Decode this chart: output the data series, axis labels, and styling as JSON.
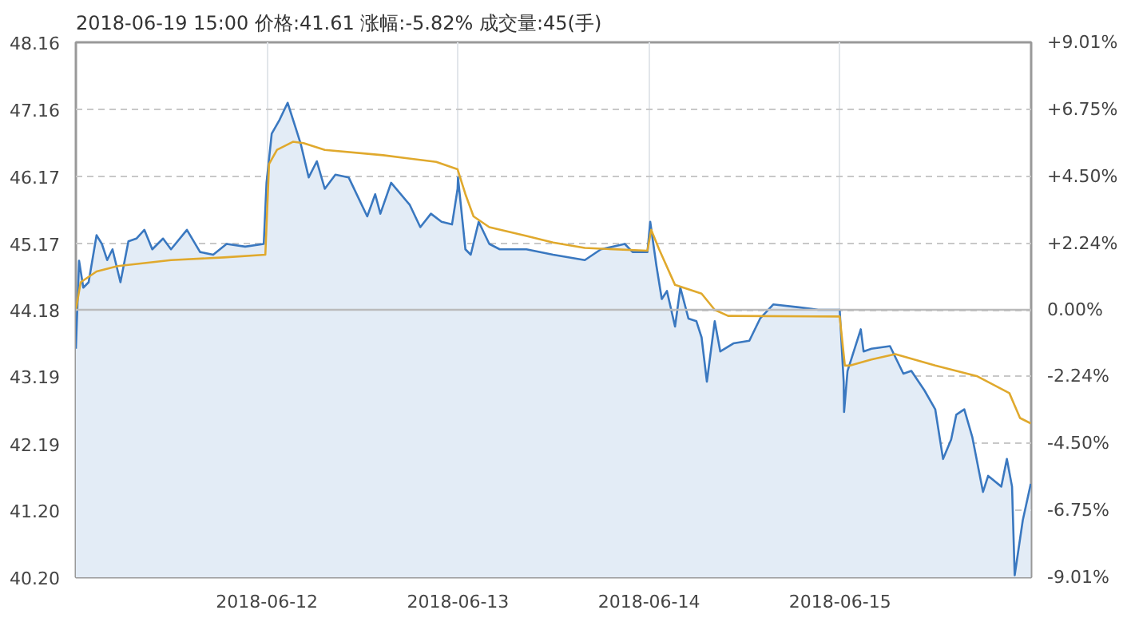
{
  "chart_data": {
    "type": "area",
    "title": "2018-06-19 15:00  价格:41.61  涨幅:-5.82%  成交量:45(手)",
    "xlim": [
      "2018-06-11",
      "2018-06-16"
    ],
    "xticks": [
      "2018-06-12",
      "2018-06-13",
      "2018-06-14",
      "2018-06-15"
    ],
    "ylim": [
      40.2,
      48.16
    ],
    "yticks": [
      {
        "value": 40.2,
        "label": "40.20"
      },
      {
        "value": 41.2,
        "label": "41.20"
      },
      {
        "value": 42.19,
        "label": "42.19"
      },
      {
        "value": 43.19,
        "label": "43.19"
      },
      {
        "value": 44.18,
        "label": "44.18"
      },
      {
        "value": 45.17,
        "label": "45.17"
      },
      {
        "value": 46.17,
        "label": "46.17"
      },
      {
        "value": 47.16,
        "label": "47.16"
      },
      {
        "value": 48.16,
        "label": "48.16"
      }
    ],
    "y2lim": [
      -9.01,
      9.01
    ],
    "y2ticks": [
      {
        "value": -9.01,
        "label": "-9.01%"
      },
      {
        "value": -6.75,
        "label": "-6.75%"
      },
      {
        "value": -4.5,
        "label": "-4.50%"
      },
      {
        "value": -2.24,
        "label": "-2.24%"
      },
      {
        "value": 0,
        "label": "0.00%"
      },
      {
        "value": 2.24,
        "label": "+2.24%"
      },
      {
        "value": 4.5,
        "label": "+4.50%"
      },
      {
        "value": 6.75,
        "label": "+6.75%"
      },
      {
        "value": 9.01,
        "label": "+9.01%"
      }
    ],
    "grid": true,
    "ref_lines": [
      {
        "axis": "y",
        "value": 44.18,
        "color": "#bbbbbb",
        "line_style": "solid"
      }
    ],
    "series": [
      {
        "color": "#3a78c0",
        "x": [
          "2018-06-11T00:00",
          "2018-06-11T00:24",
          "2018-06-11T00:56",
          "2018-06-11T01:36",
          "2018-06-11T02:36",
          "2018-06-11T03:16",
          "2018-06-11T03:56",
          "2018-06-11T04:36",
          "2018-06-11T05:36",
          "2018-06-11T06:36",
          "2018-06-11T07:36",
          "2018-06-11T08:36",
          "2018-06-11T09:36",
          "2018-06-11T10:57",
          "2018-06-11T11:57",
          "2018-06-11T13:57",
          "2018-06-11T15:36",
          "2018-06-11T17:15",
          "2018-06-11T18:56",
          "2018-06-11T21:16",
          "2018-06-11T23:36",
          "2018-06-11T23:57",
          "2018-06-12T00:36",
          "2018-06-12T01:36",
          "2018-06-12T02:36",
          "2018-06-12T03:36",
          "2018-06-12T04:16",
          "2018-06-12T05:15",
          "2018-06-12T06:16",
          "2018-06-12T07:16",
          "2018-06-12T08:36",
          "2018-06-12T10:16",
          "2018-06-12T12:36",
          "2018-06-12T13:36",
          "2018-06-12T14:15",
          "2018-06-12T15:36",
          "2018-06-12T17:57",
          "2018-06-12T19:16",
          "2018-06-12T20:36",
          "2018-06-12T21:56",
          "2018-06-12T23:15",
          "2018-06-12T23:57",
          "2018-06-13T00:00",
          "2018-06-13T00:56",
          "2018-06-13T01:36",
          "2018-06-13T02:36",
          "2018-06-13T03:56",
          "2018-06-13T05:15",
          "2018-06-13T08:36",
          "2018-06-13T11:57",
          "2018-06-13T15:56",
          "2018-06-13T17:57",
          "2018-06-13T20:57",
          "2018-06-13T21:56",
          "2018-06-13T23:48",
          "2018-06-14T00:09",
          "2018-06-14T00:56",
          "2018-06-14T01:36",
          "2018-06-14T02:15",
          "2018-06-14T03:16",
          "2018-06-14T03:56",
          "2018-06-14T04:57",
          "2018-06-14T05:57",
          "2018-06-14T06:36",
          "2018-06-14T07:16",
          "2018-06-14T08:15",
          "2018-06-14T08:57",
          "2018-06-14T10:36",
          "2018-06-14T12:36",
          "2018-06-14T13:57",
          "2018-06-14T15:36",
          "2018-06-14T18:36",
          "2018-06-14T21:16",
          "2018-06-14T23:57",
          "2018-06-15T00:27",
          "2018-06-15T00:30",
          "2018-06-15T00:56",
          "2018-06-15T02:36",
          "2018-06-15T02:57",
          "2018-06-15T03:56",
          "2018-06-15T06:16",
          "2018-06-15T07:57",
          "2018-06-15T08:57",
          "2018-06-15T10:36",
          "2018-06-15T11:57",
          "2018-06-15T12:56",
          "2018-06-15T13:57",
          "2018-06-15T14:36",
          "2018-06-15T15:36",
          "2018-06-15T16:36",
          "2018-06-15T17:57",
          "2018-06-15T18:36",
          "2018-06-15T20:15",
          "2018-06-15T20:57",
          "2018-06-15T21:36",
          "2018-06-15T21:56",
          "2018-06-15T22:57",
          "2018-06-15T23:57"
        ],
        "values": [
          43.6,
          44.91,
          44.51,
          44.59,
          45.29,
          45.16,
          44.92,
          45.08,
          44.59,
          45.2,
          45.24,
          45.37,
          45.08,
          45.24,
          45.08,
          45.37,
          45.04,
          45.0,
          45.16,
          45.12,
          45.16,
          46.07,
          46.8,
          47.01,
          47.26,
          46.89,
          46.64,
          46.15,
          46.39,
          45.98,
          46.19,
          46.15,
          45.57,
          45.9,
          45.61,
          46.07,
          45.74,
          45.41,
          45.61,
          45.49,
          45.45,
          45.98,
          46.15,
          45.08,
          45.0,
          45.49,
          45.16,
          45.08,
          45.08,
          45.0,
          44.92,
          45.08,
          45.16,
          45.04,
          45.04,
          45.49,
          44.83,
          44.34,
          44.46,
          43.93,
          44.51,
          44.05,
          44.01,
          43.77,
          43.11,
          44.01,
          43.56,
          43.68,
          43.72,
          44.05,
          44.26,
          44.22,
          44.18,
          44.18,
          43.11,
          42.66,
          43.27,
          43.89,
          43.56,
          43.6,
          43.64,
          43.23,
          43.27,
          42.98,
          42.7,
          41.96,
          42.25,
          42.62,
          42.7,
          42.29,
          41.47,
          41.71,
          41.55,
          41.96,
          41.55,
          40.23,
          41.05,
          41.59
        ]
      },
      {
        "type": "line",
        "color": "#e0a92d",
        "x": [
          "2018-06-11T00:00",
          "2018-06-11T00:36",
          "2018-06-11T02:36",
          "2018-06-11T05:15",
          "2018-06-11T11:57",
          "2018-06-11T18:36",
          "2018-06-11T23:48",
          "2018-06-12T00:16",
          "2018-06-12T01:16",
          "2018-06-12T03:16",
          "2018-06-12T04:36",
          "2018-06-12T07:16",
          "2018-06-12T14:36",
          "2018-06-12T21:16",
          "2018-06-12T23:57",
          "2018-06-13T00:56",
          "2018-06-13T01:57",
          "2018-06-13T03:56",
          "2018-06-13T08:36",
          "2018-06-13T11:57",
          "2018-06-13T15:56",
          "2018-06-13T23:48",
          "2018-06-14T00:16",
          "2018-06-14T01:16",
          "2018-06-14T03:16",
          "2018-06-14T06:36",
          "2018-06-14T08:15",
          "2018-06-14T09:56",
          "2018-06-14T23:57",
          "2018-06-15T00:36",
          "2018-06-15T01:16",
          "2018-06-15T03:56",
          "2018-06-15T06:56",
          "2018-06-15T11:57",
          "2018-06-15T17:15",
          "2018-06-15T21:16",
          "2018-06-15T22:36",
          "2018-06-15T23:57"
        ],
        "values": [
          44.18,
          44.59,
          44.75,
          44.83,
          44.92,
          44.96,
          45.0,
          46.35,
          46.56,
          46.68,
          46.66,
          46.56,
          46.48,
          46.38,
          46.27,
          45.9,
          45.57,
          45.41,
          45.28,
          45.18,
          45.1,
          45.06,
          45.37,
          45.08,
          44.55,
          44.42,
          44.18,
          44.09,
          44.08,
          43.35,
          43.35,
          43.44,
          43.52,
          43.35,
          43.19,
          42.94,
          42.57,
          42.49
        ]
      }
    ]
  }
}
